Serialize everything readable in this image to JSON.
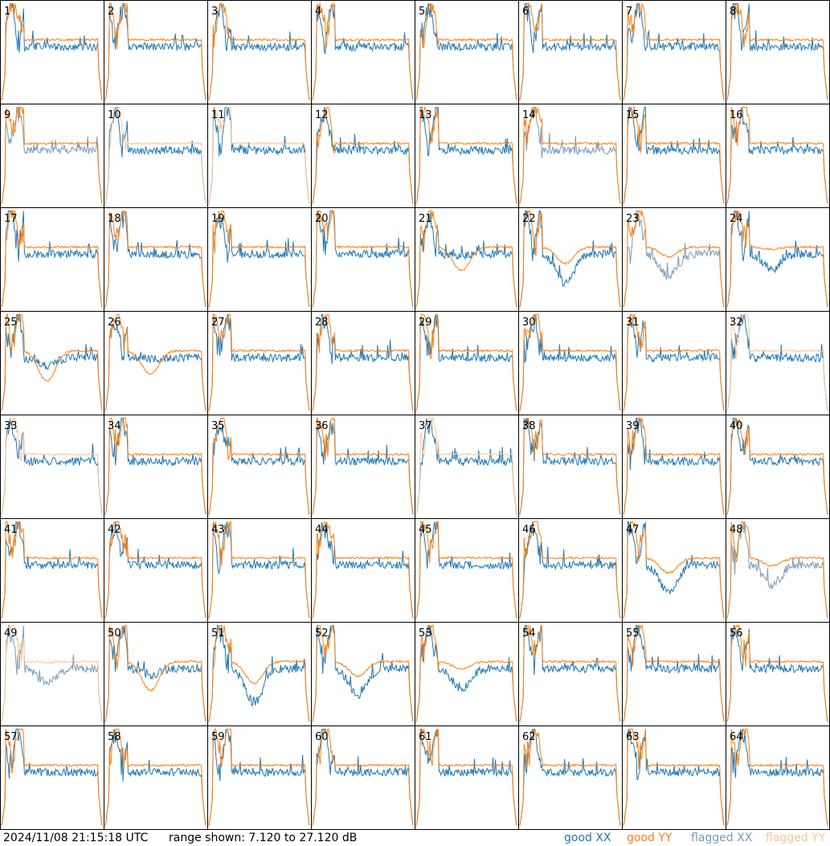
{
  "chart_data": {
    "type": "line",
    "panel_ids": [
      "1",
      "2",
      "3",
      "4",
      "5",
      "6",
      "7",
      "8",
      "9",
      "10",
      "11",
      "12",
      "13",
      "14",
      "15",
      "16",
      "17",
      "18",
      "19",
      "20",
      "21",
      "22",
      "23",
      "24",
      "25",
      "26",
      "27",
      "28",
      "29",
      "30",
      "31",
      "32",
      "33",
      "34",
      "35",
      "36",
      "37",
      "38",
      "39",
      "40",
      "41",
      "42",
      "43",
      "44",
      "45",
      "46",
      "47",
      "48",
      "49",
      "50",
      "51",
      "52",
      "53",
      "54",
      "55",
      "56",
      "57",
      "58",
      "59",
      "60",
      "61",
      "62",
      "63",
      "64"
    ],
    "grid": [
      8,
      8
    ],
    "series_styles": {
      "good_xx": {
        "label": "good",
        "pol": "XX",
        "color": "#1f77b4"
      },
      "good_yy": {
        "label": "good",
        "pol": "YY",
        "color": "#ff7f0e"
      },
      "flagged_xx": {
        "label": "flagged",
        "pol": "XX",
        "color": "#7a9bb8"
      },
      "flagged_yy": {
        "label": "flagged",
        "pol": "YY",
        "color": "#f8c898"
      }
    },
    "y_range_db": [
      7.12,
      27.12
    ],
    "panel_status": {
      "9": [
        "flagged_xx",
        "good_yy"
      ],
      "10": [
        "good_xx",
        "flagged_yy"
      ],
      "11": [
        "good_xx",
        "flagged_yy"
      ],
      "14": [
        "flagged_xx",
        "good_yy"
      ],
      "23": [
        "flagged_xx",
        "good_yy"
      ],
      "32": [
        "good_xx",
        "flagged_yy"
      ],
      "33": [
        "good_xx",
        "flagged_yy"
      ],
      "37": [
        "good_xx",
        "flagged_yy"
      ],
      "48": [
        "flagged_xx",
        "good_yy"
      ],
      "49": [
        "flagged_xx",
        "flagged_yy"
      ]
    }
  },
  "footer": {
    "timestamp": "2024/11/08 21:15:18 UTC",
    "range_text": "range shown: 7.120 to 27.120 dB",
    "legend": [
      {
        "label": "good",
        "code": "XX",
        "color": "#1f77b4"
      },
      {
        "label": "good",
        "code": "YY",
        "color": "#ff7f0e"
      },
      {
        "label": "flagged",
        "code": "XX",
        "color": "#7a9bb8"
      },
      {
        "label": "flagged",
        "code": "YY",
        "color": "#f8c898"
      }
    ]
  }
}
